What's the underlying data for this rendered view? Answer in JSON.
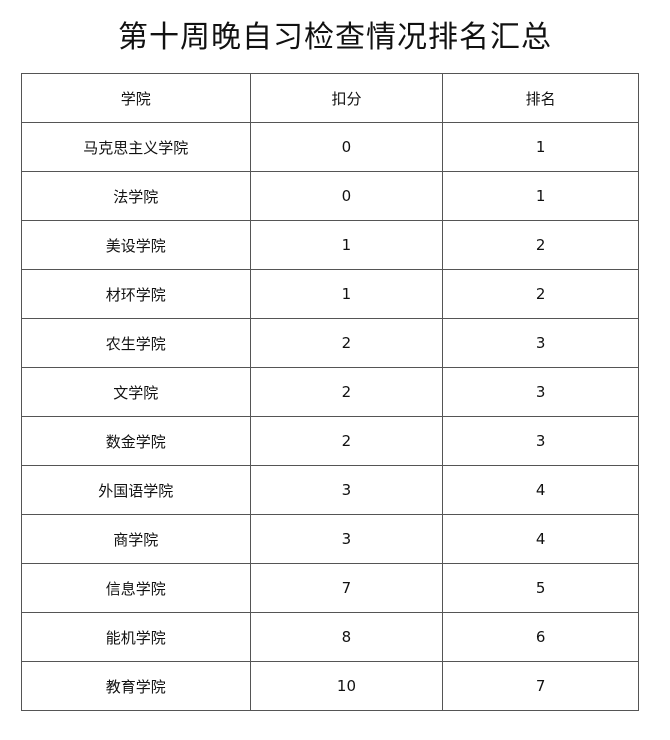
{
  "title": "第十周晚自习检查情况排名汇总",
  "headers": [
    "学院",
    "扣分",
    "排名"
  ],
  "rows": [
    [
      "马克思主义学院",
      "0",
      "1"
    ],
    [
      "法学院",
      "0",
      "1"
    ],
    [
      "美设学院",
      "1",
      "2"
    ],
    [
      "材环学院",
      "1",
      "2"
    ],
    [
      "农生学院",
      "2",
      "3"
    ],
    [
      "文学院",
      "2",
      "3"
    ],
    [
      "数金学院",
      "2",
      "3"
    ],
    [
      "外国语学院",
      "3",
      "4"
    ],
    [
      "商学院",
      "3",
      "4"
    ],
    [
      "信息学院",
      "7",
      "5"
    ],
    [
      "能机学院",
      "8",
      "6"
    ],
    [
      "教育学院",
      "10",
      "7"
    ]
  ]
}
